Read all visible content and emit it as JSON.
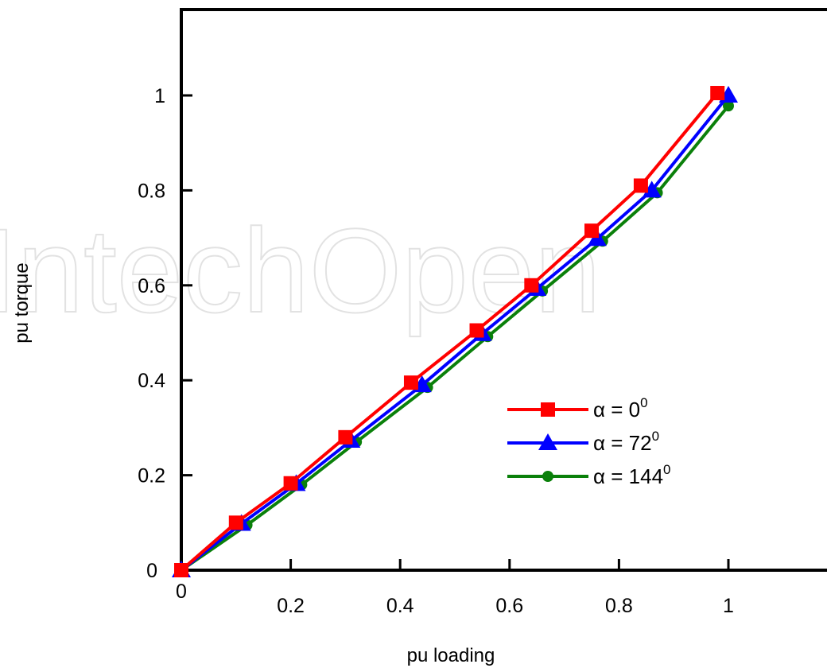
{
  "watermark": "IntechOpen",
  "chart_data": {
    "type": "line",
    "xlabel": "pu loading",
    "ylabel": "pu torque",
    "xlim": [
      0,
      1.17
    ],
    "ylim": [
      0,
      1.17
    ],
    "xticks": [
      0,
      0.2,
      0.4,
      0.6,
      0.8,
      1
    ],
    "xtick_labels": [
      "0",
      "0.2",
      "0.4",
      "0.6",
      "0.8",
      "1"
    ],
    "yticks": [
      0,
      0.2,
      0.4,
      0.6,
      0.8,
      1
    ],
    "ytick_labels": [
      "0",
      "0.2",
      "0.4",
      "0.6",
      "0.8",
      "1"
    ],
    "grid": false,
    "legend_position": "lower-right",
    "series": [
      {
        "name": "α = 0",
        "name_base": "α = 0",
        "name_sup": "0",
        "color": "#ff0000",
        "marker": "square",
        "x": [
          0,
          0.1,
          0.2,
          0.3,
          0.42,
          0.54,
          0.64,
          0.75,
          0.84,
          0.98
        ],
        "y": [
          0,
          0.1,
          0.183,
          0.28,
          0.395,
          0.505,
          0.6,
          0.715,
          0.81,
          1.005
        ]
      },
      {
        "name": "α = 72",
        "name_base": "α = 72",
        "name_sup": "0",
        "color": "#0000ff",
        "marker": "triangle",
        "x": [
          0,
          0.11,
          0.21,
          0.31,
          0.44,
          0.55,
          0.65,
          0.76,
          0.86,
          1.0
        ],
        "y": [
          0,
          0.098,
          0.182,
          0.273,
          0.39,
          0.498,
          0.593,
          0.698,
          0.8,
          1.0
        ]
      },
      {
        "name": "α = 144",
        "name_base": "α = 144",
        "name_sup": "0",
        "color": "#0a800a",
        "marker": "circle",
        "x": [
          0,
          0.12,
          0.22,
          0.32,
          0.45,
          0.56,
          0.66,
          0.77,
          0.87,
          1.0
        ],
        "y": [
          0,
          0.095,
          0.18,
          0.27,
          0.385,
          0.492,
          0.588,
          0.693,
          0.795,
          0.978
        ]
      }
    ]
  }
}
